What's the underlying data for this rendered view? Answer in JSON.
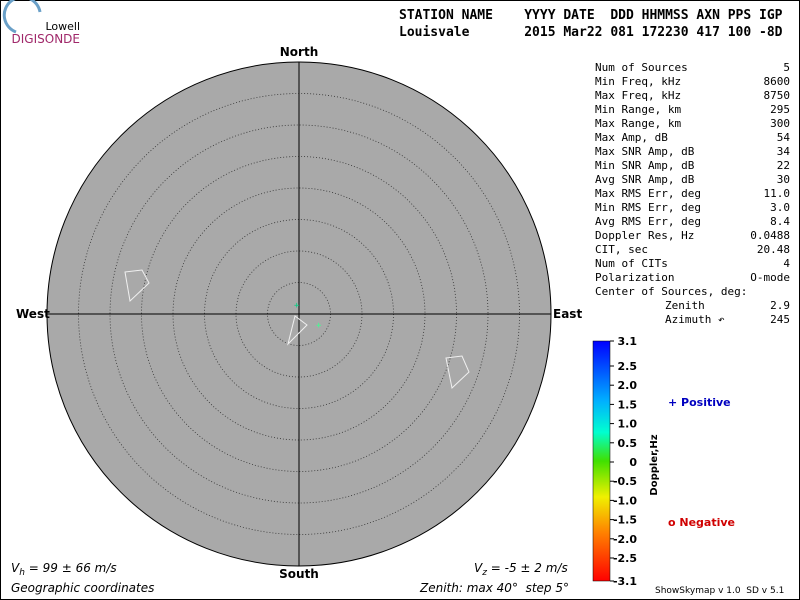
{
  "logo": {
    "top": "Lowell",
    "bottom": "DIGISONDE"
  },
  "header": {
    "labels": "STATION NAME    YYYY DATE  DDD HHMMSS AXN PPS IGP",
    "values": "Louisvale       2015 Mar22 081 172230 417 100 -8D"
  },
  "directions": {
    "north": "North",
    "south": "South",
    "east": "East",
    "west": "West"
  },
  "stats": [
    [
      "Num of Sources",
      "5"
    ],
    [
      "Min Freq, kHz",
      "8600"
    ],
    [
      "Max Freq, kHz",
      "8750"
    ],
    [
      "Min Range, km",
      "295"
    ],
    [
      "Max Range, km",
      "300"
    ],
    [
      "Max Amp, dB",
      "54"
    ],
    [
      "Max SNR Amp, dB",
      "34"
    ],
    [
      "Min SNR Amp, dB",
      "22"
    ],
    [
      "Avg SNR Amp, dB",
      "30"
    ],
    [
      "Max RMS Err, deg",
      "11.0"
    ],
    [
      "Min RMS Err, deg",
      "3.0"
    ],
    [
      "Avg RMS Err, deg",
      "8.4"
    ],
    [
      "Doppler Res, Hz",
      "0.0488"
    ],
    [
      "CIT, sec",
      "20.48"
    ],
    [
      "Num of CITs",
      "4"
    ],
    [
      "Polarization",
      "O-mode"
    ]
  ],
  "center": {
    "label": "Center of Sources, deg:",
    "zenith": [
      "Zenith",
      "2.9"
    ],
    "azimuth": [
      "Azimuth ↶",
      "245"
    ]
  },
  "colorbar": {
    "label": "Doppler,Hz",
    "ticks": [
      "3.1",
      "2.5",
      "2.0",
      "1.5",
      "1.0",
      "0.5",
      "0",
      "-0.5",
      "-1.0",
      "-1.5",
      "-2.0",
      "-2.5",
      "-3.1"
    ]
  },
  "legend": {
    "positive": "+ Positive",
    "negative": "o Negative"
  },
  "footer": {
    "vh": [
      "V",
      "h",
      " = 99 ± 66 m/s"
    ],
    "vz": [
      "V",
      "z",
      " = -5 ± 2 m/s"
    ],
    "coords": "Geographic coordinates",
    "zenith": "Zenith: max 40°  step 5°",
    "version": "ShowSkymap v 1.0  SD v 5.1"
  }
}
